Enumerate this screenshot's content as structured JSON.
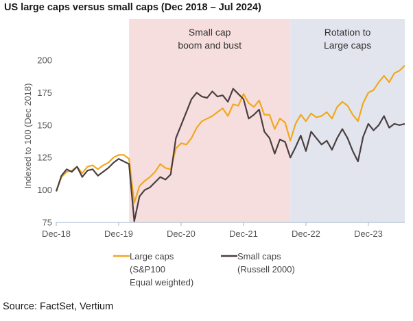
{
  "title": "US large caps versus small caps (Dec 2018 – Jul 2024)",
  "source": "Source: FactSet, Vertium",
  "chart_data": {
    "type": "line",
    "title": "US large caps versus small caps (Dec 2018 – Jul 2024)",
    "ylabel": "Indexed to 100 (Dec 2018)",
    "xlabel": "",
    "ylim": [
      75,
      200
    ],
    "yticks": [
      "75",
      "100",
      "125",
      "150",
      "175",
      "200"
    ],
    "xticks": [
      "Dec-18",
      "Dec-19",
      "Dec-20",
      "Dec-21",
      "Dec-22",
      "Dec-23"
    ],
    "xlim": [
      "2018-12",
      "2024-07"
    ],
    "grid": false,
    "legend_position": "bottom",
    "shaded_regions": [
      {
        "label": "Small cap boom and bust",
        "line1": "Small cap",
        "line2": "boom and bust",
        "start": "2020-02",
        "end": "2022-09",
        "color": "#f6dede"
      },
      {
        "label": "Rotation to Large caps",
        "line1": "Rotation to",
        "line2": "Large caps",
        "start": "2022-09",
        "end": "2024-07",
        "color": "#e3e5ee"
      }
    ],
    "series": [
      {
        "name": "Large caps (S&P100 Equal weighted)",
        "legend_lines": [
          "Large caps",
          "(S&P100",
          "Equal weighted)"
        ],
        "color": "#f0a81c",
        "points": [
          [
            "2018-12",
            99
          ],
          [
            "2019-01",
            110
          ],
          [
            "2019-02",
            114
          ],
          [
            "2019-03",
            115
          ],
          [
            "2019-04",
            118
          ],
          [
            "2019-05",
            113
          ],
          [
            "2019-06",
            118
          ],
          [
            "2019-07",
            119
          ],
          [
            "2019-08",
            116
          ],
          [
            "2019-09",
            119
          ],
          [
            "2019-10",
            121
          ],
          [
            "2019-11",
            125
          ],
          [
            "2019-12",
            127
          ],
          [
            "2020-01",
            127
          ],
          [
            "2020-02",
            124
          ],
          [
            "2020-03",
            90
          ],
          [
            "2020-04",
            103
          ],
          [
            "2020-05",
            107
          ],
          [
            "2020-06",
            110
          ],
          [
            "2020-07",
            114
          ],
          [
            "2020-08",
            120
          ],
          [
            "2020-09",
            117
          ],
          [
            "2020-10",
            116
          ],
          [
            "2020-11",
            132
          ],
          [
            "2020-12",
            136
          ],
          [
            "2021-01",
            135
          ],
          [
            "2021-02",
            140
          ],
          [
            "2021-03",
            148
          ],
          [
            "2021-04",
            153
          ],
          [
            "2021-05",
            155
          ],
          [
            "2021-06",
            157
          ],
          [
            "2021-07",
            160
          ],
          [
            "2021-08",
            163
          ],
          [
            "2021-09",
            157
          ],
          [
            "2021-10",
            166
          ],
          [
            "2021-11",
            165
          ],
          [
            "2021-12",
            174
          ],
          [
            "2022-01",
            167
          ],
          [
            "2022-02",
            164
          ],
          [
            "2022-03",
            169
          ],
          [
            "2022-04",
            158
          ],
          [
            "2022-05",
            158
          ],
          [
            "2022-06",
            147
          ],
          [
            "2022-07",
            155
          ],
          [
            "2022-08",
            152
          ],
          [
            "2022-09",
            138
          ],
          [
            "2022-10",
            151
          ],
          [
            "2022-11",
            158
          ],
          [
            "2022-12",
            153
          ],
          [
            "2023-01",
            159
          ],
          [
            "2023-02",
            156
          ],
          [
            "2023-03",
            157
          ],
          [
            "2023-04",
            160
          ],
          [
            "2023-05",
            155
          ],
          [
            "2023-06",
            164
          ],
          [
            "2023-07",
            168
          ],
          [
            "2023-08",
            165
          ],
          [
            "2023-09",
            158
          ],
          [
            "2023-10",
            153
          ],
          [
            "2023-11",
            167
          ],
          [
            "2023-12",
            175
          ],
          [
            "2024-01",
            177
          ],
          [
            "2024-02",
            183
          ],
          [
            "2024-03",
            188
          ],
          [
            "2024-04",
            183
          ],
          [
            "2024-05",
            190
          ],
          [
            "2024-06",
            192
          ],
          [
            "2024-07",
            196
          ]
        ]
      },
      {
        "name": "Small caps (Russell 2000)",
        "legend_lines": [
          "Small caps",
          "(Russell 2000)"
        ],
        "color": "#4a3e40",
        "points": [
          [
            "2018-12",
            99
          ],
          [
            "2019-01",
            111
          ],
          [
            "2019-02",
            116
          ],
          [
            "2019-03",
            114
          ],
          [
            "2019-04",
            118
          ],
          [
            "2019-05",
            110
          ],
          [
            "2019-06",
            115
          ],
          [
            "2019-07",
            116
          ],
          [
            "2019-08",
            111
          ],
          [
            "2019-09",
            114
          ],
          [
            "2019-10",
            117
          ],
          [
            "2019-11",
            121
          ],
          [
            "2019-12",
            124
          ],
          [
            "2020-01",
            122
          ],
          [
            "2020-02",
            120
          ],
          [
            "2020-03",
            76
          ],
          [
            "2020-04",
            95
          ],
          [
            "2020-05",
            100
          ],
          [
            "2020-06",
            102
          ],
          [
            "2020-07",
            106
          ],
          [
            "2020-08",
            110
          ],
          [
            "2020-09",
            108
          ],
          [
            "2020-10",
            112
          ],
          [
            "2020-11",
            140
          ],
          [
            "2020-12",
            150
          ],
          [
            "2021-01",
            160
          ],
          [
            "2021-02",
            170
          ],
          [
            "2021-03",
            175
          ],
          [
            "2021-04",
            172
          ],
          [
            "2021-05",
            171
          ],
          [
            "2021-06",
            176
          ],
          [
            "2021-07",
            172
          ],
          [
            "2021-08",
            173
          ],
          [
            "2021-09",
            168
          ],
          [
            "2021-10",
            178
          ],
          [
            "2021-11",
            174
          ],
          [
            "2021-12",
            170
          ],
          [
            "2022-01",
            155
          ],
          [
            "2022-02",
            158
          ],
          [
            "2022-03",
            162
          ],
          [
            "2022-04",
            145
          ],
          [
            "2022-05",
            140
          ],
          [
            "2022-06",
            128
          ],
          [
            "2022-07",
            139
          ],
          [
            "2022-08",
            137
          ],
          [
            "2022-09",
            125
          ],
          [
            "2022-10",
            133
          ],
          [
            "2022-11",
            142
          ],
          [
            "2022-12",
            130
          ],
          [
            "2023-01",
            145
          ],
          [
            "2023-02",
            140
          ],
          [
            "2023-03",
            135
          ],
          [
            "2023-04",
            138
          ],
          [
            "2023-05",
            131
          ],
          [
            "2023-06",
            140
          ],
          [
            "2023-07",
            147
          ],
          [
            "2023-08",
            140
          ],
          [
            "2023-09",
            130
          ],
          [
            "2023-10",
            122
          ],
          [
            "2023-11",
            141
          ],
          [
            "2023-12",
            151
          ],
          [
            "2024-01",
            146
          ],
          [
            "2024-02",
            150
          ],
          [
            "2024-03",
            157
          ],
          [
            "2024-04",
            148
          ],
          [
            "2024-05",
            151
          ],
          [
            "2024-06",
            150
          ],
          [
            "2024-07",
            151
          ]
        ]
      }
    ]
  }
}
